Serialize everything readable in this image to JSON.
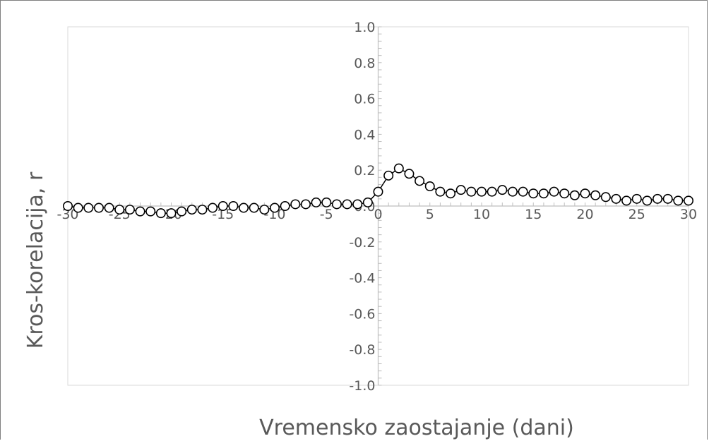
{
  "chart_data": {
    "type": "scatter",
    "title": "",
    "xlabel": "Vremensko zaostajanje (dani)",
    "ylabel": "Kros-korelacija, r",
    "xlim": [
      -30,
      30
    ],
    "ylim": [
      -1.0,
      1.0
    ],
    "x_ticks": [
      "-30",
      "-25",
      "-20",
      "-15",
      "-10",
      "-5",
      "0",
      "5",
      "10",
      "15",
      "20",
      "25",
      "30"
    ],
    "y_ticks": [
      "1.0",
      "0.8",
      "0.6",
      "0.4",
      "0.2",
      "0.0",
      "-0.2",
      "-0.4",
      "-0.6",
      "-0.8",
      "-1.0"
    ],
    "grid": false,
    "marker": "open-circle",
    "line_color": "#000000",
    "axis_color": "#bfbfbf",
    "series": [
      {
        "x": [
          -30,
          -29,
          -28,
          -27,
          -26,
          -25,
          -24,
          -23,
          -22,
          -21,
          -20,
          -19,
          -18,
          -17,
          -16,
          -15,
          -14,
          -13,
          -12,
          -11,
          -10,
          -9,
          -8,
          -7,
          -6,
          -5,
          -4,
          -3,
          -2,
          -1,
          0,
          1,
          2,
          3,
          4,
          5,
          6,
          7,
          8,
          9,
          10,
          11,
          12,
          13,
          14,
          15,
          16,
          17,
          18,
          19,
          20,
          21,
          22,
          23,
          24,
          25,
          26,
          27,
          28,
          29,
          30
        ],
        "y": [
          0.0,
          -0.01,
          -0.01,
          -0.01,
          -0.01,
          -0.02,
          -0.02,
          -0.03,
          -0.03,
          -0.04,
          -0.04,
          -0.03,
          -0.02,
          -0.02,
          -0.01,
          0.0,
          0.0,
          -0.01,
          -0.01,
          -0.02,
          -0.01,
          0.0,
          0.01,
          0.01,
          0.02,
          0.02,
          0.01,
          0.01,
          0.01,
          0.02,
          0.08,
          0.17,
          0.21,
          0.18,
          0.14,
          0.11,
          0.08,
          0.07,
          0.09,
          0.08,
          0.08,
          0.08,
          0.09,
          0.08,
          0.08,
          0.07,
          0.07,
          0.08,
          0.07,
          0.06,
          0.07,
          0.06,
          0.05,
          0.04,
          0.03,
          0.04,
          0.03,
          0.04,
          0.04,
          0.03,
          0.03
        ]
      }
    ]
  }
}
